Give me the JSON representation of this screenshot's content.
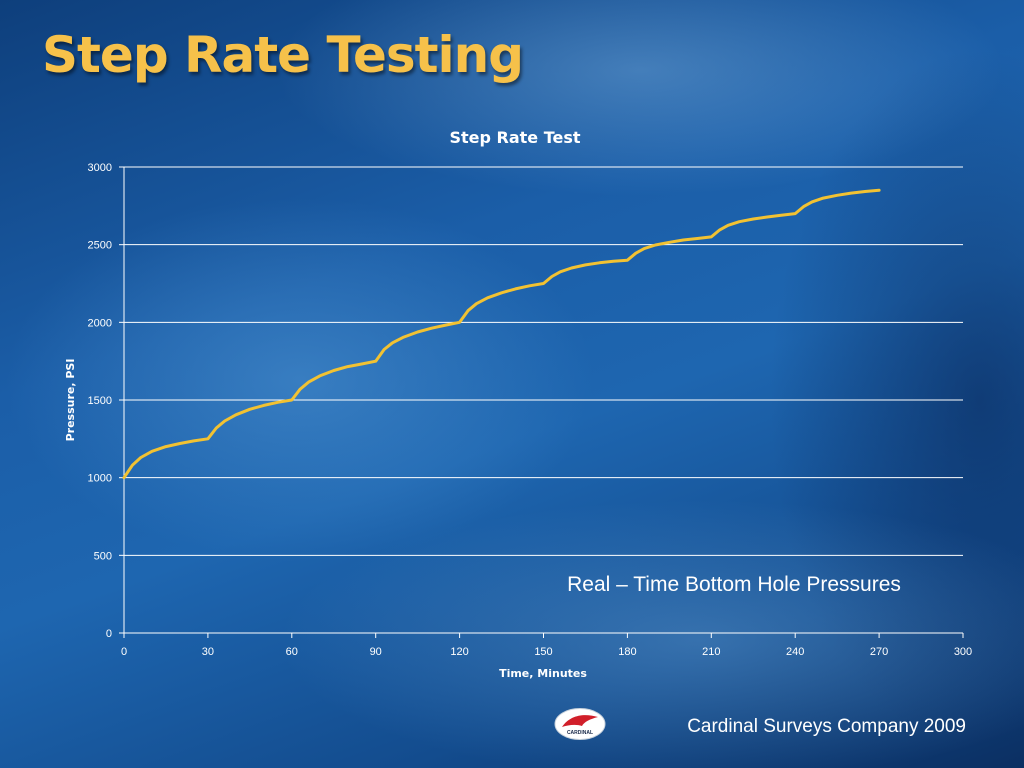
{
  "slide": {
    "title": "Step Rate Testing",
    "footer": "Cardinal Surveys Company 2009",
    "logo_text": "CARDINAL"
  },
  "chart_data": {
    "type": "line",
    "title": "Step Rate Test",
    "xlabel": "Time, Minutes",
    "ylabel": "Pressure, PSI",
    "xlim": [
      0,
      300
    ],
    "ylim": [
      0,
      3000
    ],
    "xticks": [
      0,
      30,
      60,
      90,
      120,
      150,
      180,
      210,
      240,
      270,
      300
    ],
    "yticks": [
      0,
      500,
      1000,
      1500,
      2000,
      2500,
      3000
    ],
    "grid": "horizontal",
    "line_color": "#f2c232",
    "annotation": "Real – Time Bottom Hole Pressures",
    "series": [
      {
        "x": [
          0,
          3,
          6,
          10,
          15,
          20,
          25,
          30,
          33,
          36,
          40,
          45,
          50,
          55,
          60,
          63,
          66,
          70,
          75,
          80,
          85,
          90,
          93,
          96,
          100,
          105,
          110,
          115,
          120,
          123,
          126,
          130,
          135,
          140,
          145,
          150,
          153,
          156,
          160,
          165,
          170,
          175,
          180,
          183,
          186,
          190,
          195,
          200,
          205,
          210,
          213,
          216,
          220,
          225,
          230,
          235,
          240,
          243,
          246,
          250,
          255,
          260,
          265,
          270
        ],
        "y": [
          1000,
          1080,
          1130,
          1170,
          1200,
          1220,
          1237,
          1250,
          1320,
          1365,
          1405,
          1440,
          1465,
          1485,
          1500,
          1570,
          1615,
          1655,
          1690,
          1715,
          1732,
          1750,
          1825,
          1868,
          1905,
          1938,
          1962,
          1982,
          2000,
          2075,
          2120,
          2158,
          2190,
          2215,
          2235,
          2250,
          2295,
          2325,
          2350,
          2370,
          2383,
          2393,
          2400,
          2445,
          2475,
          2498,
          2515,
          2530,
          2540,
          2550,
          2595,
          2625,
          2648,
          2665,
          2678,
          2690,
          2700,
          2745,
          2775,
          2800,
          2818,
          2832,
          2842,
          2850
        ]
      }
    ]
  }
}
